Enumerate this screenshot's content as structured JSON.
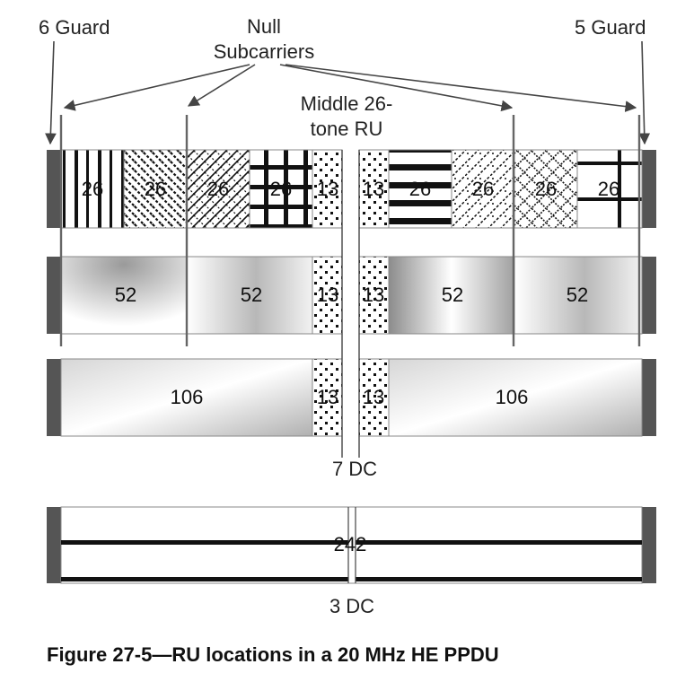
{
  "labels": {
    "guard_left": "6 Guard",
    "guard_right": "5 Guard",
    "null_line1": "Null",
    "null_line2": "Subcarriers",
    "middle_line1": "Middle 26-",
    "middle_line2": "tone RU",
    "dc7": "7 DC",
    "dc3": "3 DC"
  },
  "caption": "Figure 27-5—RU locations in a 20 MHz HE PPDU",
  "rows": {
    "row26": [
      "26",
      "26",
      "26",
      "26",
      "13",
      "13",
      "26",
      "26",
      "26",
      "26"
    ],
    "row52": [
      "52",
      "52",
      "13",
      "13",
      "52",
      "52"
    ],
    "row106": [
      "106",
      "13",
      "13",
      "106"
    ],
    "row242": "242"
  }
}
